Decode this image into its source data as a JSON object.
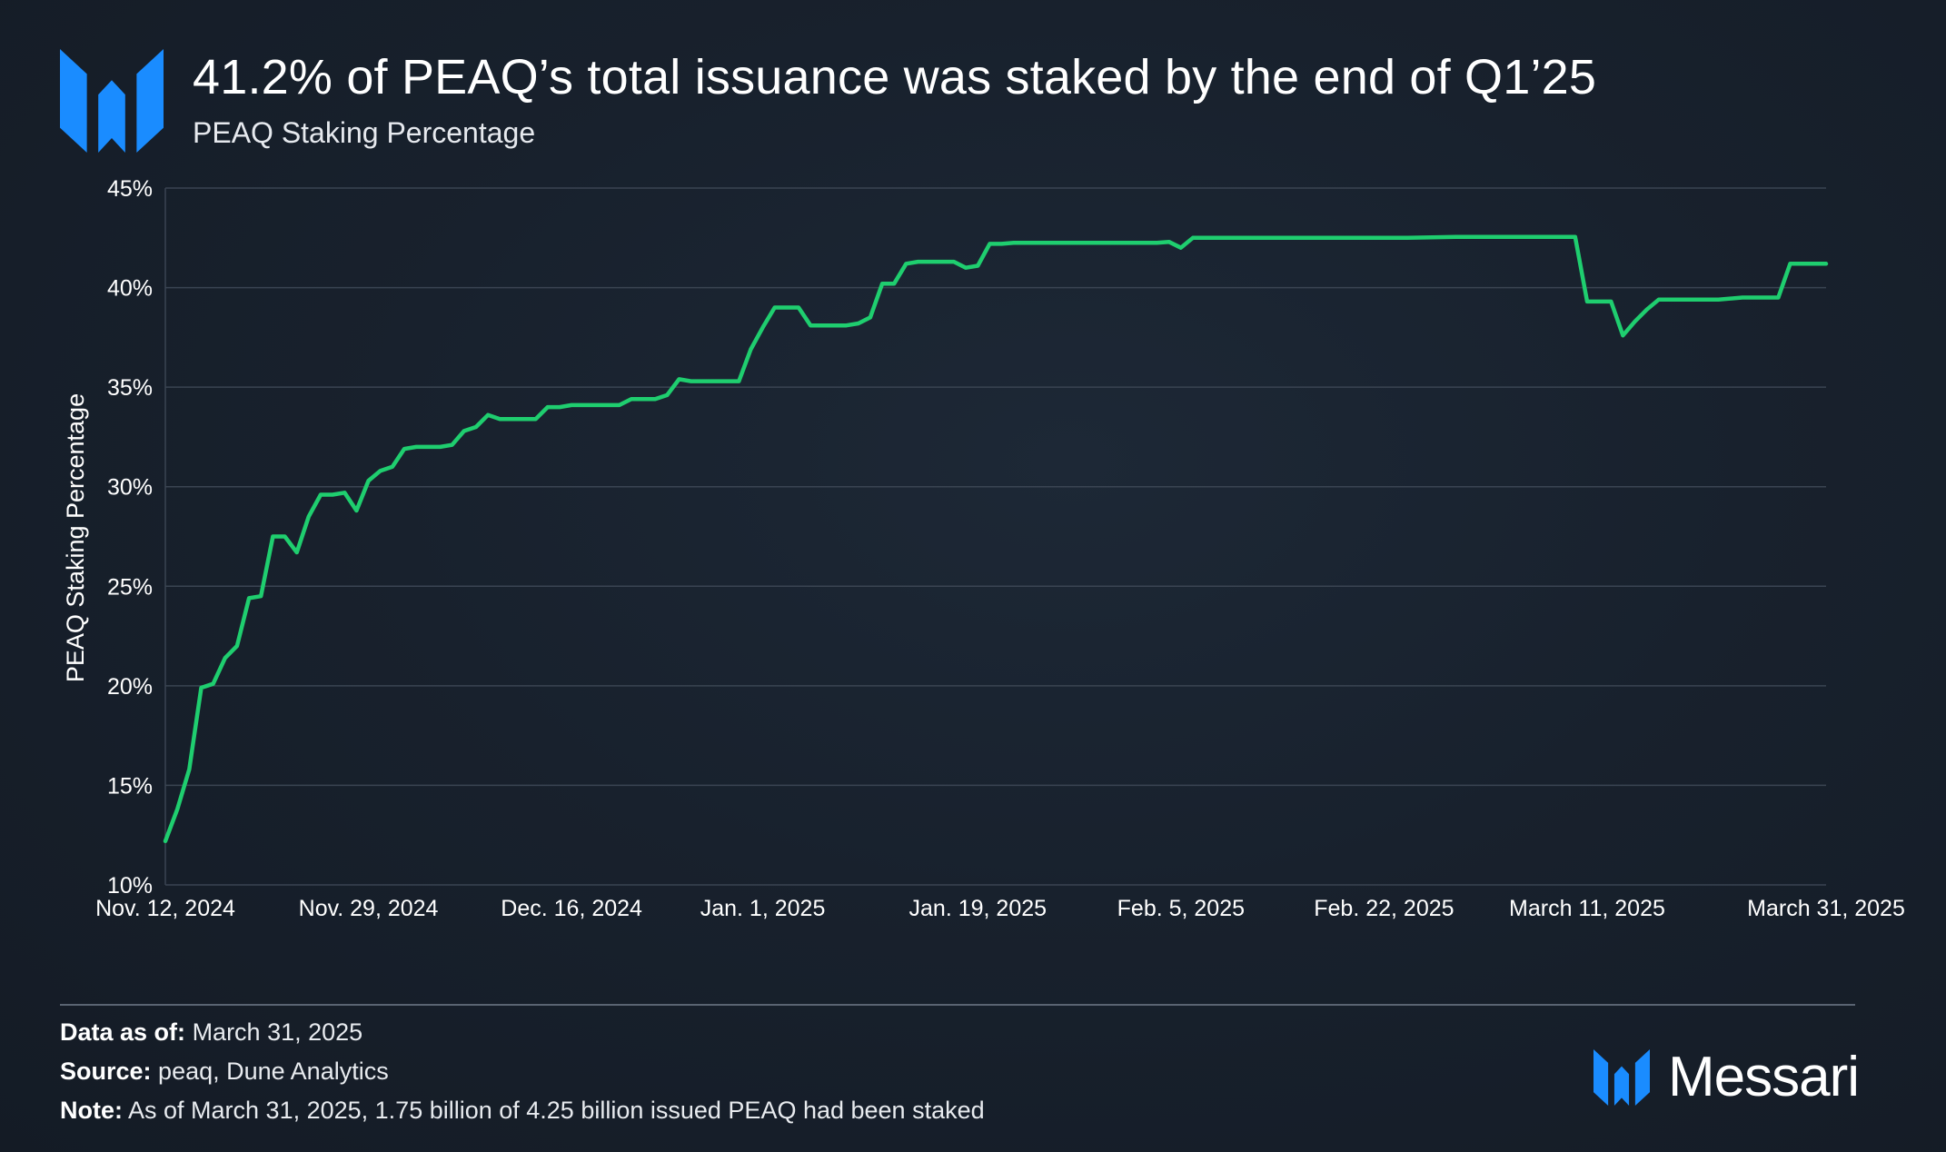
{
  "header": {
    "title": "41.2% of PEAQ’s total issuance was staked by the end of Q1’25",
    "subtitle": "PEAQ Staking Percentage"
  },
  "footer": {
    "data_as_of_label": "Data as of:",
    "data_as_of_value": "March 31, 2025",
    "source_label": "Source:",
    "source_value": "peaq, Dune Analytics",
    "note_label": "Note:",
    "note_value": "As of March 31, 2025, 1.75 billion of 4.25 billion issued PEAQ had been staked",
    "brand": "Messari"
  },
  "colors": {
    "line": "#1fce6f",
    "accent_blue": "#1a8cff",
    "grid": "#3a4452",
    "axis_text": "#ffffff"
  },
  "chart_data": {
    "type": "line",
    "title": "41.2% of PEAQ’s total issuance was staked by the end of Q1’25",
    "subtitle": "PEAQ Staking Percentage",
    "xlabel": "",
    "ylabel": "PEAQ Staking Percentage",
    "ylim": [
      10,
      45
    ],
    "yticks": [
      10,
      15,
      20,
      25,
      30,
      35,
      40,
      45
    ],
    "ytick_labels": [
      "10%",
      "15%",
      "20%",
      "25%",
      "30%",
      "35%",
      "40%",
      "45%"
    ],
    "xlim": [
      "2024-11-12",
      "2025-03-31"
    ],
    "xticks": [
      "2024-11-12",
      "2024-11-29",
      "2024-12-16",
      "2025-01-01",
      "2025-01-19",
      "2025-02-05",
      "2025-02-22",
      "2025-03-11",
      "2025-03-31"
    ],
    "xtick_labels": [
      "Nov. 12, 2024",
      "Nov. 29, 2024",
      "Dec. 16, 2024",
      "Jan. 1, 2025",
      "Jan. 19, 2025",
      "Feb. 5, 2025",
      "Feb. 22, 2025",
      "March 11, 2025",
      "March 31, 2025"
    ],
    "grid": true,
    "legend": "none",
    "series": [
      {
        "x": [
          "2024-11-12",
          "2024-11-13",
          "2024-11-14",
          "2024-11-15",
          "2024-11-16",
          "2024-11-17",
          "2024-11-18",
          "2024-11-19",
          "2024-11-20",
          "2024-11-21",
          "2024-11-22",
          "2024-11-23",
          "2024-11-24",
          "2024-11-25",
          "2024-11-26",
          "2024-11-27",
          "2024-11-28",
          "2024-11-29",
          "2024-11-30",
          "2024-12-01",
          "2024-12-02",
          "2024-12-03",
          "2024-12-04",
          "2024-12-05",
          "2024-12-06",
          "2024-12-07",
          "2024-12-08",
          "2024-12-09",
          "2024-12-10",
          "2024-12-11",
          "2024-12-12",
          "2024-12-13",
          "2024-12-14",
          "2024-12-15",
          "2024-12-16",
          "2024-12-17",
          "2024-12-18",
          "2024-12-19",
          "2024-12-20",
          "2024-12-21",
          "2024-12-22",
          "2024-12-23",
          "2024-12-24",
          "2024-12-25",
          "2024-12-26",
          "2024-12-27",
          "2024-12-28",
          "2024-12-29",
          "2024-12-30",
          "2024-12-31",
          "2025-01-01",
          "2025-01-02",
          "2025-01-03",
          "2025-01-04",
          "2025-01-05",
          "2025-01-06",
          "2025-01-07",
          "2025-01-08",
          "2025-01-09",
          "2025-01-10",
          "2025-01-11",
          "2025-01-12",
          "2025-01-13",
          "2025-01-14",
          "2025-01-15",
          "2025-01-16",
          "2025-01-17",
          "2025-01-18",
          "2025-01-19",
          "2025-01-20",
          "2025-01-21",
          "2025-01-22",
          "2025-01-23",
          "2025-01-24",
          "2025-01-26",
          "2025-01-28",
          "2025-01-30",
          "2025-02-01",
          "2025-02-03",
          "2025-02-04",
          "2025-02-05",
          "2025-02-06",
          "2025-02-08",
          "2025-02-12",
          "2025-02-16",
          "2025-02-20",
          "2025-02-24",
          "2025-02-28",
          "2025-03-04",
          "2025-03-08",
          "2025-03-09",
          "2025-03-10",
          "2025-03-11",
          "2025-03-12",
          "2025-03-13",
          "2025-03-14",
          "2025-03-15",
          "2025-03-16",
          "2025-03-17",
          "2025-03-18",
          "2025-03-20",
          "2025-03-22",
          "2025-03-24",
          "2025-03-25",
          "2025-03-26",
          "2025-03-27",
          "2025-03-28",
          "2025-03-29",
          "2025-03-30",
          "2025-03-31"
        ],
        "y": [
          12.2,
          13.8,
          15.8,
          19.9,
          20.1,
          21.4,
          22.0,
          24.4,
          24.5,
          27.5,
          27.5,
          26.7,
          28.5,
          29.6,
          29.6,
          29.7,
          28.8,
          30.3,
          30.8,
          31.0,
          31.9,
          32.0,
          32.0,
          32.0,
          32.1,
          32.8,
          33.0,
          33.6,
          33.4,
          33.4,
          33.4,
          33.4,
          34.0,
          34.0,
          34.1,
          34.1,
          34.1,
          34.1,
          34.1,
          34.4,
          34.4,
          34.4,
          34.6,
          35.4,
          35.3,
          35.3,
          35.3,
          35.3,
          35.3,
          36.9,
          38.0,
          39.0,
          39.0,
          39.0,
          38.1,
          38.1,
          38.1,
          38.1,
          38.2,
          38.5,
          40.2,
          40.2,
          41.2,
          41.3,
          41.3,
          41.3,
          41.3,
          41.0,
          41.1,
          42.2,
          42.2,
          42.25,
          42.25,
          42.25,
          42.25,
          42.25,
          42.25,
          42.25,
          42.25,
          42.3,
          42.0,
          42.5,
          42.5,
          42.5,
          42.5,
          42.5,
          42.5,
          42.55,
          42.55,
          42.55,
          42.55,
          42.55,
          39.3,
          39.3,
          39.3,
          37.6,
          38.3,
          38.9,
          39.4,
          39.4,
          39.4,
          39.4,
          39.5,
          39.5,
          39.5,
          39.5,
          41.2,
          41.2,
          41.2,
          41.2
        ]
      }
    ]
  }
}
